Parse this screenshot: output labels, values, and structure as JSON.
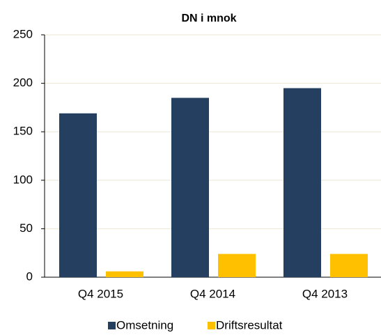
{
  "chart_data": {
    "type": "bar",
    "title": "DN i mnok",
    "categories": [
      "Q4 2015",
      "Q4 2014",
      "Q4 2013"
    ],
    "series": [
      {
        "name": "Omsetning",
        "color": "#243f60",
        "values": [
          169,
          185,
          195
        ]
      },
      {
        "name": "Driftsresultat",
        "color": "#ffc000",
        "values": [
          6,
          24,
          24
        ]
      }
    ],
    "ylim": [
      0,
      250
    ],
    "yticks": [
      0,
      50,
      100,
      150,
      200,
      250
    ],
    "grid": true,
    "legend": "bottom"
  }
}
